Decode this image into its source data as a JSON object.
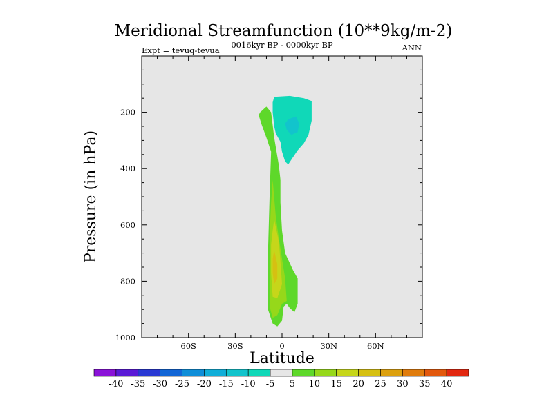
{
  "chart_data": {
    "type": "contour",
    "title": "Meridional Streamfunction (10**9kg/m-2)",
    "subtitle_left": "Expt = tevuq-tevua",
    "subtitle_center": "0016kyr BP - 0000kyr BP",
    "subtitle_right": "ANN",
    "xlabel": "Latitude",
    "ylabel": "Pressure (in hPa)",
    "xlim": [
      -90,
      90
    ],
    "ylim": [
      1000,
      0
    ],
    "x_ticks": [
      {
        "value": -60,
        "label": "60S"
      },
      {
        "value": -30,
        "label": "30S"
      },
      {
        "value": 0,
        "label": "0"
      },
      {
        "value": 30,
        "label": "30N"
      },
      {
        "value": 60,
        "label": "60N"
      }
    ],
    "y_ticks": [
      {
        "value": 200,
        "label": "200"
      },
      {
        "value": 400,
        "label": "400"
      },
      {
        "value": 600,
        "label": "600"
      },
      {
        "value": 800,
        "label": "800"
      },
      {
        "value": 1000,
        "label": "1000"
      }
    ],
    "background_color": "#e6e6e6",
    "colorbar": {
      "labels": [
        "-40",
        "-35",
        "-30",
        "-25",
        "-20",
        "-15",
        "-10",
        "-5",
        "5",
        "10",
        "15",
        "20",
        "25",
        "30",
        "35",
        "40"
      ],
      "colors": [
        "#8a12d8",
        "#5a1ad6",
        "#2a3ad4",
        "#1266d6",
        "#0f8ed8",
        "#10aed8",
        "#12c4cc",
        "#10d8b8",
        "#e6e6e6",
        "#5ed82a",
        "#96d81a",
        "#c6d61a",
        "#d6c012",
        "#dca00e",
        "#e07c0c",
        "#e2580c",
        "#e22810"
      ]
    },
    "regions": [
      {
        "name": "negative-cell-upper",
        "level": "-10 to -5",
        "color": "#10d8b8",
        "polygon": [
          [
            -5,
            145
          ],
          [
            5,
            142
          ],
          [
            14,
            150
          ],
          [
            19,
            160
          ],
          [
            19,
            230
          ],
          [
            17,
            280
          ],
          [
            14,
            310
          ],
          [
            10,
            335
          ],
          [
            7,
            360
          ],
          [
            4,
            385
          ],
          [
            2,
            375
          ],
          [
            0,
            340
          ],
          [
            -1,
            305
          ],
          [
            -4,
            275
          ],
          [
            -5,
            250
          ],
          [
            -6,
            200
          ],
          [
            -6,
            165
          ]
        ]
      },
      {
        "name": "negative-cell-core",
        "level": "-15 to -10",
        "color": "#12c4cc",
        "polygon": [
          [
            4,
            225
          ],
          [
            9,
            215
          ],
          [
            11,
            240
          ],
          [
            10,
            270
          ],
          [
            6,
            280
          ],
          [
            3,
            262
          ],
          [
            2,
            240
          ]
        ]
      },
      {
        "name": "positive-cell-outer",
        "level": "5 to 10",
        "color": "#5ed82a",
        "polygon": [
          [
            -14,
            200
          ],
          [
            -10,
            180
          ],
          [
            -7,
            200
          ],
          [
            -5,
            290
          ],
          [
            -2,
            390
          ],
          [
            -1,
            440
          ],
          [
            -1,
            520
          ],
          [
            0,
            620
          ],
          [
            2,
            700
          ],
          [
            7,
            760
          ],
          [
            10,
            790
          ],
          [
            10,
            880
          ],
          [
            8,
            910
          ],
          [
            5,
            895
          ],
          [
            3,
            880
          ],
          [
            1,
            890
          ],
          [
            0,
            940
          ],
          [
            -3,
            960
          ],
          [
            -6,
            950
          ],
          [
            -9,
            900
          ],
          [
            -9,
            700
          ],
          [
            -8,
            500
          ],
          [
            -7,
            340
          ],
          [
            -10,
            290
          ],
          [
            -13,
            245
          ],
          [
            -15,
            210
          ]
        ]
      },
      {
        "name": "positive-cell-mid",
        "level": "10 to 15",
        "color": "#96d81a",
        "polygon": [
          [
            -6,
            440
          ],
          [
            -4,
            570
          ],
          [
            -2,
            650
          ],
          [
            0,
            720
          ],
          [
            2,
            790
          ],
          [
            3,
            870
          ],
          [
            0,
            880
          ],
          [
            -3,
            920
          ],
          [
            -6,
            930
          ],
          [
            -8,
            890
          ],
          [
            -8,
            640
          ],
          [
            -7,
            520
          ]
        ]
      },
      {
        "name": "positive-cell-core",
        "level": "15 to 20",
        "color": "#c6d61a",
        "polygon": [
          [
            -5,
            580
          ],
          [
            -2,
            660
          ],
          [
            -1,
            730
          ],
          [
            0,
            810
          ],
          [
            -3,
            860
          ],
          [
            -6,
            855
          ],
          [
            -7,
            770
          ],
          [
            -7,
            670
          ],
          [
            -6,
            620
          ]
        ]
      },
      {
        "name": "positive-cell-peak",
        "level": "20 to 25",
        "color": "#d6c012",
        "polygon": [
          [
            -5,
            690
          ],
          [
            -3,
            740
          ],
          [
            -3,
            790
          ],
          [
            -5,
            810
          ],
          [
            -6,
            770
          ],
          [
            -6,
            720
          ]
        ]
      }
    ]
  }
}
